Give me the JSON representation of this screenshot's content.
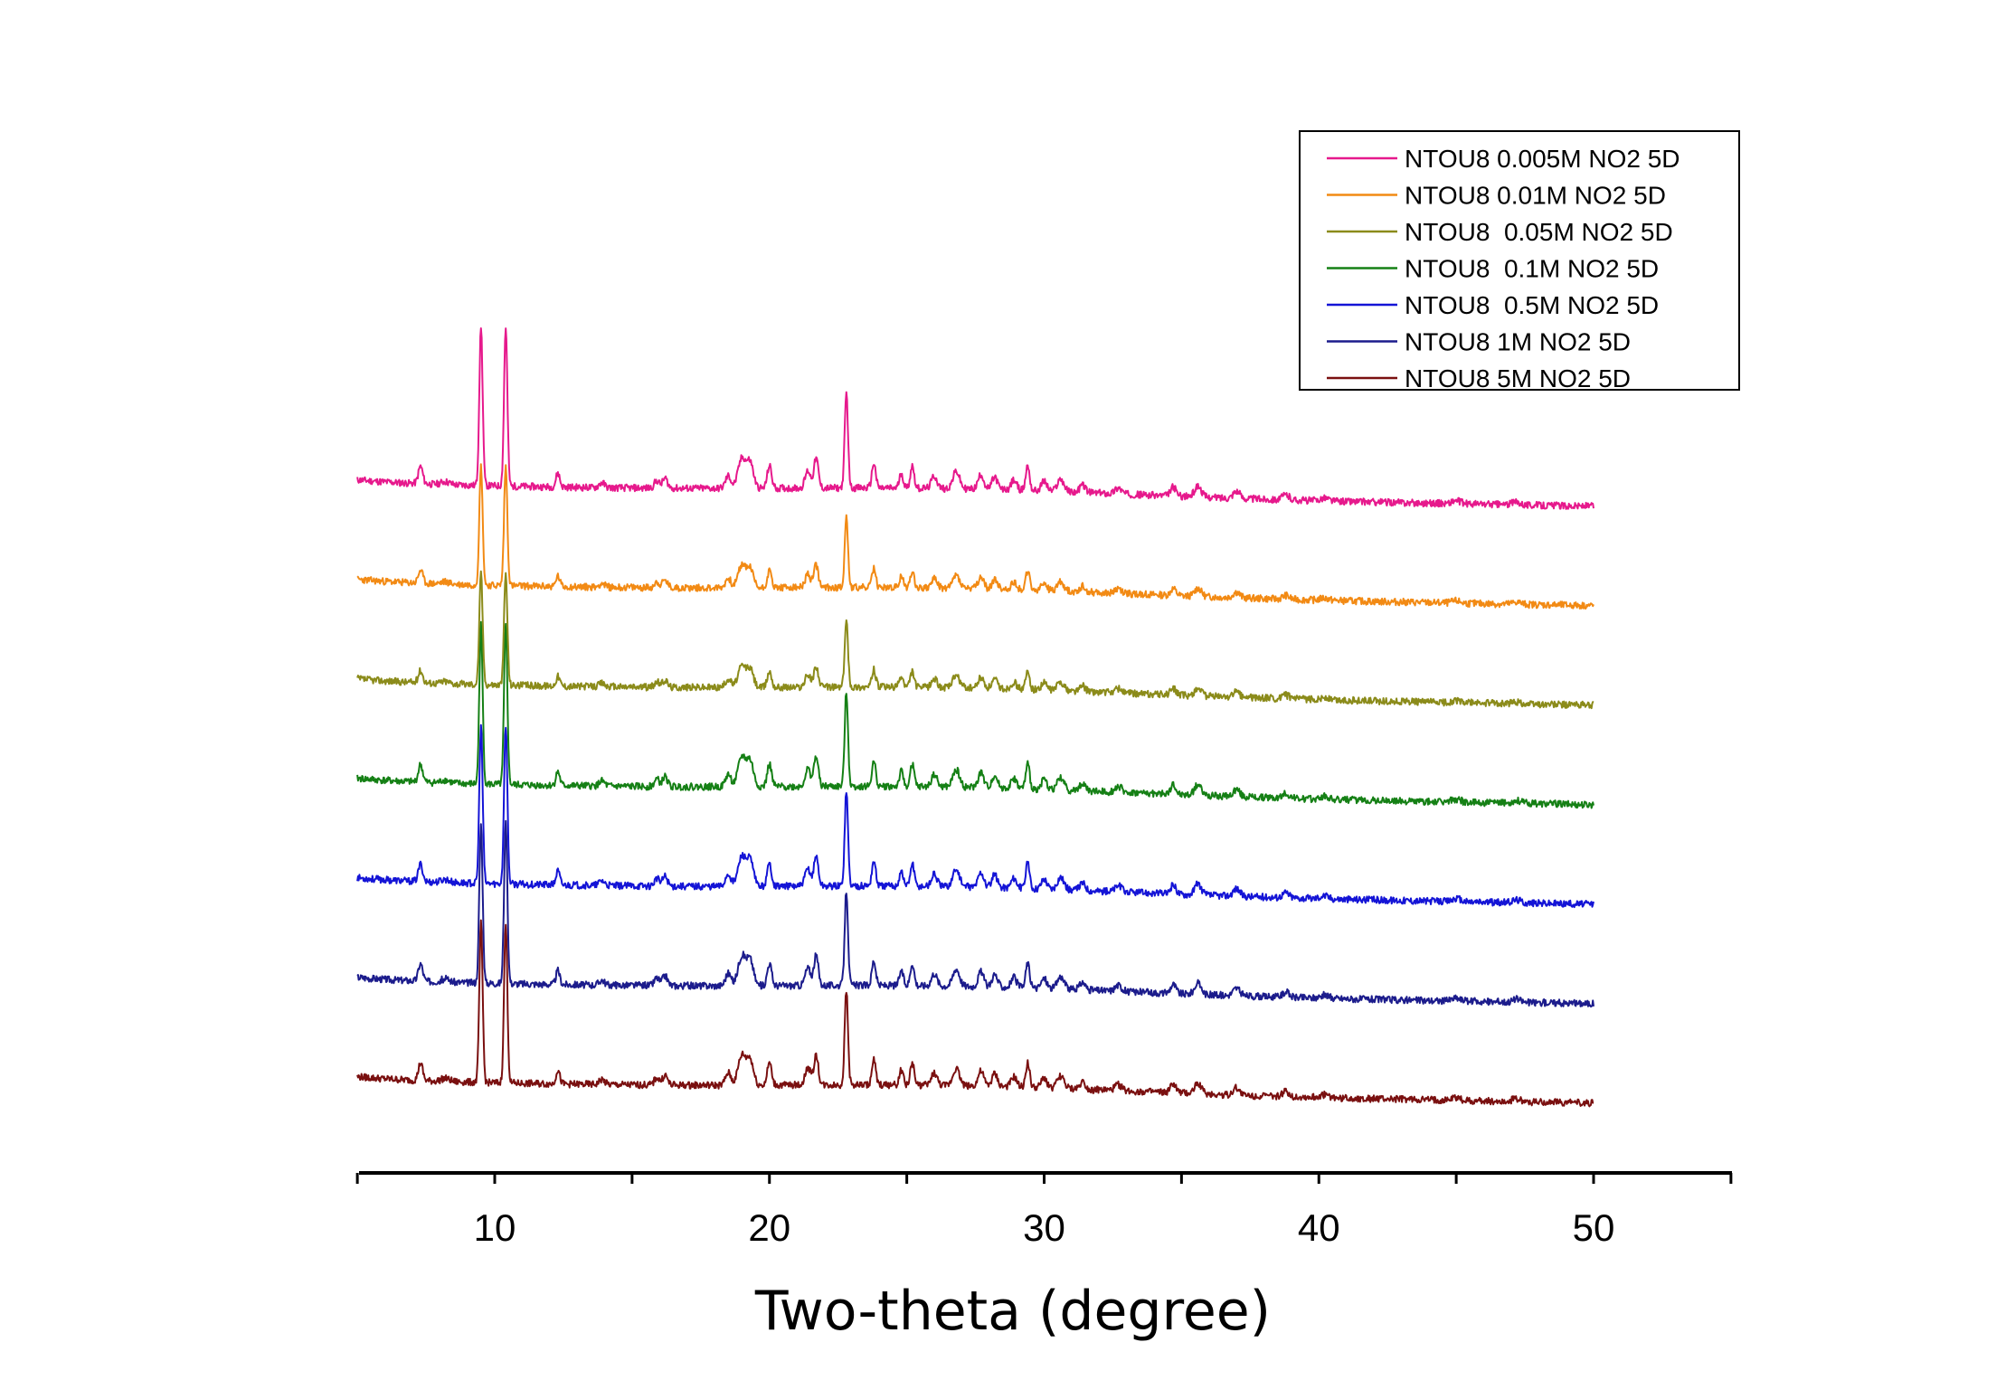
{
  "chart_data": {
    "type": "line",
    "title": "",
    "xlabel": "Two-theta (degree)",
    "ylabel": "",
    "xlim": [
      5,
      55
    ],
    "xticks": [
      "10",
      "20",
      "30",
      "40",
      "50"
    ],
    "x_start": 5,
    "x_end": 50,
    "legend_position": "top-right",
    "peaks": [
      {
        "x": 7.3,
        "h": 0.35,
        "w": 0.08
      },
      {
        "x": 8.2,
        "h": 0.06,
        "w": 0.15
      },
      {
        "x": 9.5,
        "h": 3.2,
        "w": 0.06
      },
      {
        "x": 10.4,
        "h": 3.2,
        "w": 0.06
      },
      {
        "x": 12.3,
        "h": 0.28,
        "w": 0.07
      },
      {
        "x": 13.9,
        "h": 0.1,
        "w": 0.1
      },
      {
        "x": 15.9,
        "h": 0.15,
        "w": 0.09
      },
      {
        "x": 16.2,
        "h": 0.2,
        "w": 0.09
      },
      {
        "x": 18.5,
        "h": 0.25,
        "w": 0.1
      },
      {
        "x": 19.0,
        "h": 0.6,
        "w": 0.14
      },
      {
        "x": 19.3,
        "h": 0.5,
        "w": 0.12
      },
      {
        "x": 20.0,
        "h": 0.45,
        "w": 0.08
      },
      {
        "x": 21.4,
        "h": 0.35,
        "w": 0.1
      },
      {
        "x": 21.7,
        "h": 0.6,
        "w": 0.08
      },
      {
        "x": 22.8,
        "h": 1.9,
        "w": 0.06
      },
      {
        "x": 23.8,
        "h": 0.5,
        "w": 0.07
      },
      {
        "x": 24.8,
        "h": 0.3,
        "w": 0.07
      },
      {
        "x": 25.2,
        "h": 0.45,
        "w": 0.07
      },
      {
        "x": 26.0,
        "h": 0.25,
        "w": 0.1
      },
      {
        "x": 26.8,
        "h": 0.35,
        "w": 0.12
      },
      {
        "x": 27.7,
        "h": 0.3,
        "w": 0.1
      },
      {
        "x": 28.2,
        "h": 0.25,
        "w": 0.1
      },
      {
        "x": 28.9,
        "h": 0.2,
        "w": 0.1
      },
      {
        "x": 29.4,
        "h": 0.5,
        "w": 0.07
      },
      {
        "x": 30.0,
        "h": 0.2,
        "w": 0.1
      },
      {
        "x": 30.6,
        "h": 0.25,
        "w": 0.12
      },
      {
        "x": 31.4,
        "h": 0.15,
        "w": 0.1
      },
      {
        "x": 32.7,
        "h": 0.12,
        "w": 0.12
      },
      {
        "x": 34.7,
        "h": 0.18,
        "w": 0.1
      },
      {
        "x": 35.6,
        "h": 0.22,
        "w": 0.12
      },
      {
        "x": 37.0,
        "h": 0.15,
        "w": 0.12
      },
      {
        "x": 38.8,
        "h": 0.1,
        "w": 0.12
      },
      {
        "x": 40.2,
        "h": 0.06,
        "w": 0.15
      },
      {
        "x": 45.0,
        "h": 0.06,
        "w": 0.15
      },
      {
        "x": 47.2,
        "h": 0.06,
        "w": 0.15
      }
    ],
    "series": [
      {
        "name": "NTOU8 0.005M NO2 5D",
        "color": "#e6198c",
        "seed": 11,
        "base": 0.0,
        "scale": 1.0
      },
      {
        "name": "NTOU8 0.01M NO2 5D",
        "color": "#f28a14",
        "seed": 23,
        "base": 1.0,
        "scale": 0.75
      },
      {
        "name": "NTOU8  0.05M NO2 5D",
        "color": "#8b8b1a",
        "seed": 37,
        "base": 2.0,
        "scale": 0.7
      },
      {
        "name": "NTOU8  0.1M NO2 5D",
        "color": "#158015",
        "seed": 41,
        "base": 3.0,
        "scale": 1.0
      },
      {
        "name": "NTOU8  0.5M NO2 5D",
        "color": "#1414d6",
        "seed": 53,
        "base": 4.0,
        "scale": 1.0
      },
      {
        "name": "NTOU8 1M NO2 5D",
        "color": "#1c1c8c",
        "seed": 67,
        "base": 5.0,
        "scale": 1.0
      },
      {
        "name": "NTOU8 5M NO2 5D",
        "color": "#7a1010",
        "seed": 79,
        "base": 6.0,
        "scale": 1.0
      }
    ]
  }
}
